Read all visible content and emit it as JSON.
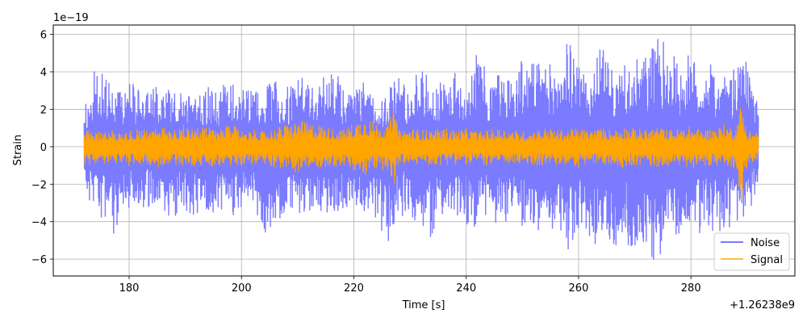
{
  "chart_data": {
    "type": "line",
    "title": "",
    "xlabel": "Time [s]",
    "ylabel": "Strain",
    "x_offset_text": "+1.26238e9",
    "y_scale_text": "1e−19",
    "xlim": [
      166.5,
      298.5
    ],
    "ylim": [
      -6.9,
      6.5
    ],
    "x_ticks": [
      180,
      200,
      220,
      240,
      260,
      280
    ],
    "x_tick_labels": [
      "180",
      "200",
      "220",
      "240",
      "260",
      "280"
    ],
    "y_ticks": [
      -6,
      -4,
      -2,
      0,
      2,
      4,
      6
    ],
    "y_tick_labels": [
      "−6",
      "−4",
      "−2",
      "0",
      "2",
      "4",
      "6"
    ],
    "grid": true,
    "legend_position": "lower right",
    "series": [
      {
        "name": "Noise",
        "color": "#7b7bff",
        "x_range": [
          172,
          292
        ],
        "envelope_x": [
          172,
          174,
          176,
          178,
          180,
          182,
          184,
          186,
          188,
          190,
          192,
          194,
          196,
          198,
          200,
          202,
          204,
          206,
          208,
          210,
          212,
          214,
          216,
          218,
          220,
          222,
          224,
          226,
          228,
          230,
          232,
          234,
          236,
          238,
          240,
          242,
          244,
          246,
          248,
          250,
          252,
          254,
          256,
          258,
          260,
          262,
          264,
          266,
          268,
          270,
          272,
          274,
          276,
          278,
          280,
          282,
          284,
          286,
          288,
          290,
          292
        ],
        "upper": [
          1.9,
          4.5,
          3.6,
          3.0,
          3.5,
          3.2,
          3.1,
          3.3,
          3.0,
          3.6,
          3.0,
          3.2,
          3.1,
          3.8,
          3.2,
          3.0,
          3.3,
          3.5,
          3.2,
          3.6,
          3.8,
          3.3,
          4.7,
          3.2,
          3.0,
          3.5,
          2.6,
          3.1,
          4.3,
          3.0,
          4.5,
          3.2,
          3.5,
          4.0,
          3.8,
          5.3,
          3.6,
          4.2,
          3.8,
          4.8,
          4.5,
          4.6,
          4.3,
          5.7,
          4.8,
          3.6,
          5.5,
          4.0,
          4.3,
          4.6,
          5.0,
          5.9,
          5.4,
          4.5,
          5.0,
          4.2,
          4.5,
          3.7,
          4.2,
          4.6,
          2.8
        ],
        "lower": [
          -3.0,
          -3.6,
          -4.3,
          -4.8,
          -3.4,
          -3.5,
          -3.2,
          -3.5,
          -3.8,
          -3.6,
          -3.7,
          -3.4,
          -3.6,
          -3.8,
          -3.3,
          -3.2,
          -5.4,
          -3.8,
          -3.8,
          -4.1,
          -3.4,
          -3.9,
          -3.5,
          -3.4,
          -3.3,
          -3.5,
          -4.2,
          -5.2,
          -3.8,
          -3.6,
          -4.4,
          -5.1,
          -3.7,
          -4.2,
          -4.1,
          -4.6,
          -3.8,
          -4.5,
          -4.2,
          -4.4,
          -4.6,
          -4.2,
          -4.5,
          -5.8,
          -4.7,
          -4.8,
          -5.7,
          -5.5,
          -5.1,
          -5.6,
          -5.4,
          -6.3,
          -5.5,
          -5.1,
          -4.8,
          -4.6,
          -4.8,
          -4.3,
          -4.5,
          -4.0,
          -2.6
        ]
      },
      {
        "name": "Signal",
        "color": "#ffa500",
        "x_range": [
          172,
          292
        ],
        "envelope_x": [
          172,
          174,
          176,
          178,
          180,
          182,
          184,
          186,
          188,
          190,
          192,
          194,
          196,
          198,
          200,
          202,
          204,
          206,
          208,
          210,
          212,
          214,
          216,
          218,
          220,
          222,
          224,
          226,
          227,
          228,
          230,
          232,
          234,
          236,
          238,
          240,
          242,
          244,
          246,
          248,
          250,
          252,
          254,
          256,
          258,
          260,
          262,
          264,
          266,
          268,
          270,
          272,
          274,
          276,
          278,
          280,
          282,
          284,
          286,
          288,
          289,
          290,
          292
        ],
        "upper": [
          0.9,
          0.8,
          0.9,
          0.8,
          0.9,
          1.0,
          0.9,
          1.1,
          0.9,
          1.2,
          1.0,
          1.1,
          0.9,
          1.2,
          0.9,
          0.9,
          0.8,
          1.0,
          1.2,
          1.4,
          1.3,
          1.2,
          1.0,
          0.9,
          1.3,
          1.6,
          1.3,
          1.1,
          2.1,
          0.9,
          1.0,
          0.9,
          0.9,
          1.0,
          0.9,
          1.0,
          0.8,
          0.9,
          1.0,
          0.9,
          0.8,
          0.9,
          1.0,
          0.9,
          0.9,
          1.0,
          0.9,
          1.0,
          0.9,
          1.1,
          1.0,
          0.9,
          1.1,
          0.9,
          1.0,
          1.1,
          0.9,
          1.0,
          1.2,
          1.0,
          2.5,
          0.9,
          0.8
        ],
        "lower": [
          -1.0,
          -0.9,
          -1.0,
          -0.9,
          -1.0,
          -1.0,
          -1.0,
          -1.1,
          -1.0,
          -1.1,
          -1.0,
          -1.1,
          -1.0,
          -1.1,
          -1.0,
          -0.9,
          -0.9,
          -1.1,
          -1.2,
          -1.4,
          -1.2,
          -1.1,
          -1.1,
          -1.0,
          -1.4,
          -1.6,
          -1.2,
          -1.2,
          -2.4,
          -1.0,
          -1.0,
          -0.9,
          -1.0,
          -1.0,
          -0.9,
          -1.0,
          -0.9,
          -1.0,
          -1.0,
          -0.9,
          -1.0,
          -1.0,
          -1.0,
          -1.0,
          -1.0,
          -1.1,
          -0.9,
          -1.0,
          -1.0,
          -1.1,
          -1.0,
          -1.0,
          -1.1,
          -1.0,
          -1.0,
          -1.2,
          -1.0,
          -1.0,
          -1.2,
          -1.1,
          -3.0,
          -1.0,
          -0.7
        ]
      }
    ]
  }
}
